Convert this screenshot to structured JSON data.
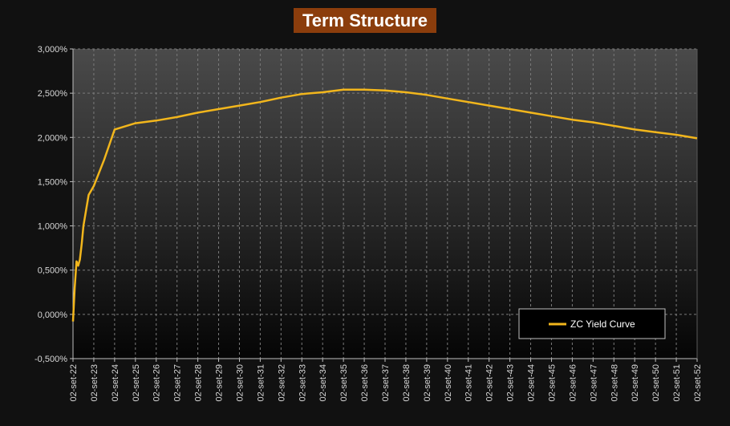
{
  "chart_data": {
    "type": "line",
    "title": "Term Structure",
    "ylim": [
      -0.5,
      3.0
    ],
    "y_ticks": [
      "-0,500%",
      "0,000%",
      "0,500%",
      "1,000%",
      "1,500%",
      "2,000%",
      "2,500%",
      "3,000%"
    ],
    "x_ticks": [
      "02-set-22",
      "02-set-23",
      "02-set-24",
      "02-set-25",
      "02-set-26",
      "02-set-27",
      "02-set-28",
      "02-set-29",
      "02-set-30",
      "02-set-31",
      "02-set-32",
      "02-set-33",
      "02-set-34",
      "02-set-35",
      "02-set-36",
      "02-set-37",
      "02-set-38",
      "02-set-39",
      "02-set-40",
      "02-set-41",
      "02-set-42",
      "02-set-43",
      "02-set-44",
      "02-set-45",
      "02-set-46",
      "02-set-47",
      "02-set-48",
      "02-set-49",
      "02-set-50",
      "02-set-51",
      "02-set-52"
    ],
    "xlim": [
      2022.0,
      2052.0
    ],
    "grid": true,
    "legend_position": "bottom-right",
    "series": [
      {
        "name": "ZC Yield Curve",
        "color": "#f2b61c",
        "x": [
          2022.0,
          2022.08,
          2022.17,
          2022.25,
          2022.33,
          2022.42,
          2022.5,
          2022.75,
          2023.0,
          2023.5,
          2024.0,
          2025.0,
          2026.0,
          2027.0,
          2028.0,
          2029.0,
          2030.0,
          2031.0,
          2032.0,
          2033.0,
          2034.0,
          2035.0,
          2036.0,
          2037.0,
          2038.0,
          2039.0,
          2040.0,
          2041.0,
          2042.0,
          2043.0,
          2044.0,
          2045.0,
          2046.0,
          2047.0,
          2048.0,
          2049.0,
          2050.0,
          2051.0,
          2052.0
        ],
        "y": [
          -0.08,
          0.3,
          0.6,
          0.55,
          0.62,
          0.8,
          1.0,
          1.35,
          1.45,
          1.75,
          2.09,
          2.16,
          2.19,
          2.23,
          2.28,
          2.32,
          2.36,
          2.4,
          2.45,
          2.49,
          2.51,
          2.54,
          2.54,
          2.53,
          2.51,
          2.48,
          2.44,
          2.4,
          2.36,
          2.32,
          2.28,
          2.24,
          2.2,
          2.17,
          2.13,
          2.09,
          2.06,
          2.03,
          1.99
        ]
      }
    ]
  }
}
